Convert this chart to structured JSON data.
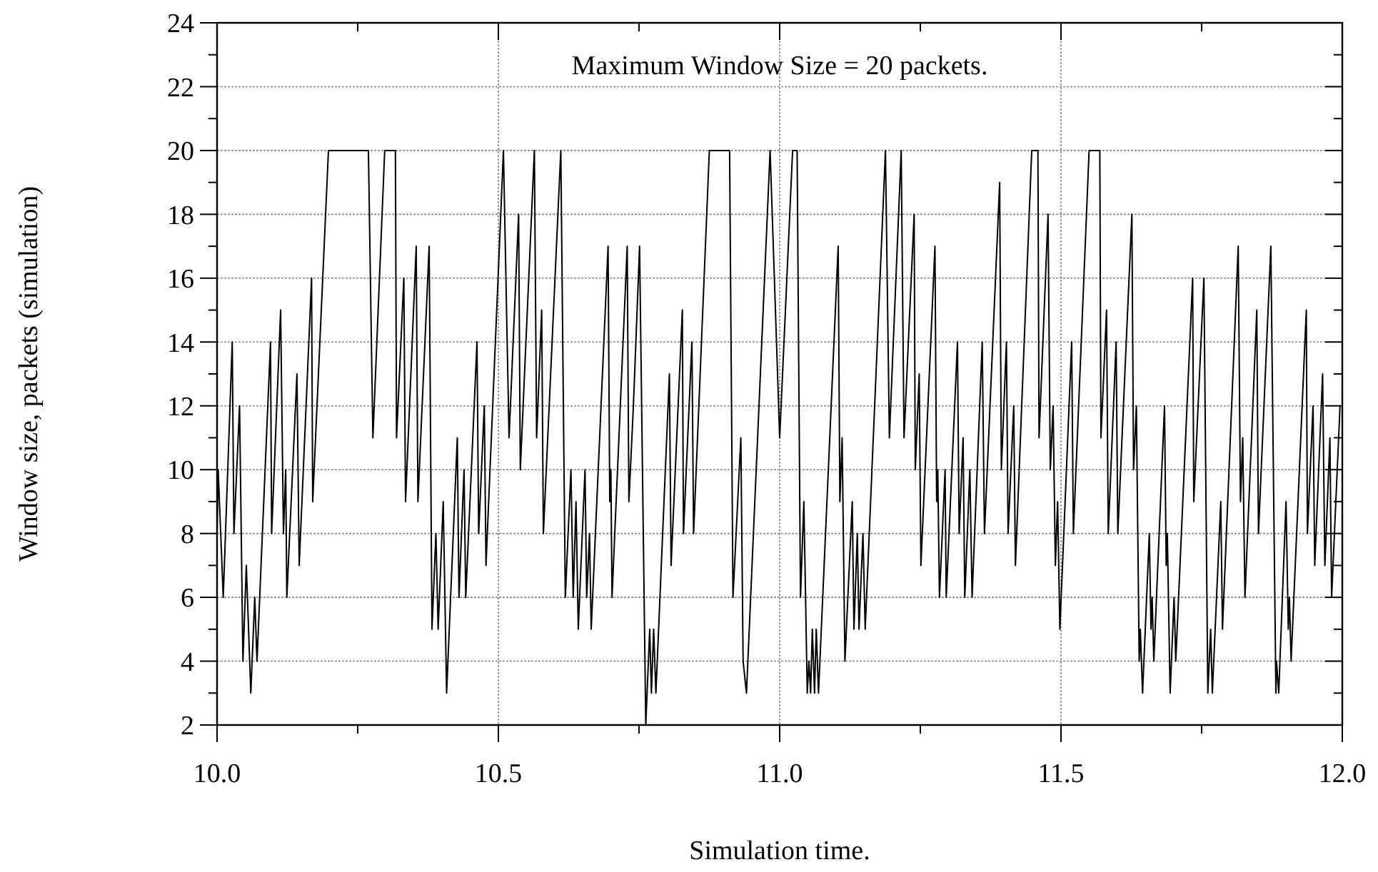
{
  "chart_data": {
    "type": "line",
    "xlabel": "Simulation time.",
    "ylabel": "Window size, packets (simulation)",
    "annotations": [
      "Maximum Window Size = 20 packets."
    ],
    "xlim": [
      10,
      12
    ],
    "ylim": [
      2,
      24
    ],
    "xticks": [
      {
        "value": 10,
        "label": "10.0"
      },
      {
        "value": 10.25,
        "label": null
      },
      {
        "value": 10.5,
        "label": "10.5"
      },
      {
        "value": 10.75,
        "label": null
      },
      {
        "value": 11,
        "label": "11.0"
      },
      {
        "value": 11.25,
        "label": null
      },
      {
        "value": 11.5,
        "label": "11.5"
      },
      {
        "value": 11.75,
        "label": null
      },
      {
        "value": 12,
        "label": "12.0"
      }
    ],
    "yticks": [
      2,
      {
        "value": 3,
        "label": null
      },
      4,
      {
        "value": 5,
        "label": null
      },
      6,
      {
        "value": 7,
        "label": null
      },
      8,
      {
        "value": 9,
        "label": null
      },
      10,
      {
        "value": 11,
        "label": null
      },
      12,
      {
        "value": 13,
        "label": null
      },
      14,
      {
        "value": 15,
        "label": null
      },
      16,
      {
        "value": 17,
        "label": null
      },
      18,
      {
        "value": 19,
        "label": null
      },
      20,
      {
        "value": 21,
        "label": null
      },
      22,
      {
        "value": 23,
        "label": null
      },
      24
    ],
    "grid": true,
    "marker": "none",
    "line_style": "solid",
    "series": [
      {
        "color": "#000000",
        "x": [
          10.0,
          10.002,
          10.011,
          10.027,
          10.03,
          10.04,
          10.046,
          10.052,
          10.056,
          10.06,
          10.067,
          10.071,
          10.095,
          10.097,
          10.113,
          10.118,
          10.122,
          10.124,
          10.142,
          10.146,
          10.168,
          10.17,
          10.198,
          10.269,
          10.277,
          10.298,
          10.317,
          10.319,
          10.332,
          10.335,
          10.354,
          10.357,
          10.377,
          10.382,
          10.389,
          10.393,
          10.402,
          10.408,
          10.427,
          10.43,
          10.439,
          10.442,
          10.462,
          10.465,
          10.475,
          10.478,
          10.509,
          10.519,
          10.536,
          10.539,
          10.564,
          10.568,
          10.577,
          10.58,
          10.611,
          10.619,
          10.629,
          10.633,
          10.638,
          10.642,
          10.654,
          10.657,
          10.662,
          10.665,
          10.695,
          10.698,
          10.7,
          10.702,
          10.729,
          10.732,
          10.74,
          10.751,
          10.762,
          10.769,
          10.772,
          10.776,
          10.78,
          10.804,
          10.807,
          10.827,
          10.829,
          10.844,
          10.847,
          10.875,
          10.911,
          10.917,
          10.931,
          10.935,
          10.941,
          10.983,
          11.0,
          11.023,
          11.031,
          11.037,
          11.043,
          11.049,
          11.052,
          11.055,
          11.058,
          11.062,
          11.065,
          11.069,
          11.104,
          11.107,
          11.111,
          11.116,
          11.129,
          11.132,
          11.138,
          11.141,
          11.148,
          11.152,
          11.188,
          11.195,
          11.216,
          11.221,
          11.239,
          11.241,
          11.248,
          11.251,
          11.276,
          11.279,
          11.281,
          11.284,
          11.294,
          11.296,
          11.316,
          11.319,
          11.326,
          11.329,
          11.338,
          11.342,
          11.36,
          11.364,
          11.391,
          11.394,
          11.403,
          11.406,
          11.416,
          11.419,
          11.448,
          11.459,
          11.461,
          11.477,
          11.481,
          11.486,
          11.49,
          11.494,
          11.498,
          11.519,
          11.522,
          11.55,
          11.569,
          11.571,
          11.581,
          11.584,
          11.598,
          11.601,
          11.626,
          11.629,
          11.634,
          11.639,
          11.641,
          11.645,
          11.657,
          11.66,
          11.662,
          11.665,
          11.684,
          11.687,
          11.689,
          11.694,
          11.701,
          11.704,
          11.734,
          11.736,
          11.754,
          11.761,
          11.766,
          11.769,
          11.784,
          11.787,
          11.815,
          11.819,
          11.823,
          11.827,
          11.848,
          11.851,
          11.873,
          11.882,
          11.883,
          11.887,
          11.9,
          11.904,
          11.906,
          11.909,
          11.936,
          11.938,
          11.948,
          11.951,
          11.965,
          11.969,
          11.978,
          11.981,
          11.996
        ],
        "values": [
          8,
          10,
          6,
          14,
          8,
          12,
          4,
          7,
          5,
          3,
          6,
          4,
          14,
          8,
          15,
          8,
          10,
          6,
          13,
          7,
          16,
          9,
          20,
          20,
          11,
          20,
          20,
          11,
          16,
          9,
          17,
          9,
          17,
          5,
          8,
          5,
          9,
          3,
          11,
          6,
          10,
          6,
          14,
          8,
          12,
          7,
          20,
          11,
          18,
          10,
          20,
          11,
          15,
          8,
          20,
          6,
          10,
          6,
          9,
          5,
          10,
          6,
          8,
          5,
          17,
          9,
          10,
          6,
          17,
          9,
          12,
          17,
          2,
          5,
          3,
          5,
          3,
          13,
          7,
          15,
          8,
          14,
          8,
          20,
          20,
          6,
          11,
          4,
          3,
          20,
          11,
          20,
          20,
          6,
          9,
          3,
          4,
          3,
          5,
          3,
          5,
          3,
          17,
          9,
          11,
          4,
          9,
          5,
          8,
          5,
          8,
          5,
          20,
          11,
          20,
          11,
          18,
          10,
          13,
          7,
          17,
          9,
          10,
          6,
          10,
          6,
          14,
          8,
          11,
          6,
          10,
          6,
          14,
          8,
          19,
          10,
          14,
          8,
          12,
          7,
          20,
          20,
          11,
          18,
          10,
          12,
          7,
          9,
          5,
          14,
          8,
          20,
          20,
          11,
          15,
          8,
          14,
          8,
          18,
          10,
          12,
          4,
          5,
          3,
          8,
          5,
          6,
          4,
          12,
          7,
          8,
          3,
          6,
          4,
          16,
          9,
          16,
          3,
          5,
          3,
          9,
          5,
          17,
          9,
          11,
          6,
          15,
          8,
          17,
          3,
          4,
          3,
          9,
          5,
          6,
          4,
          15,
          8,
          12,
          7,
          13,
          7,
          11,
          6,
          12
        ]
      }
    ]
  }
}
